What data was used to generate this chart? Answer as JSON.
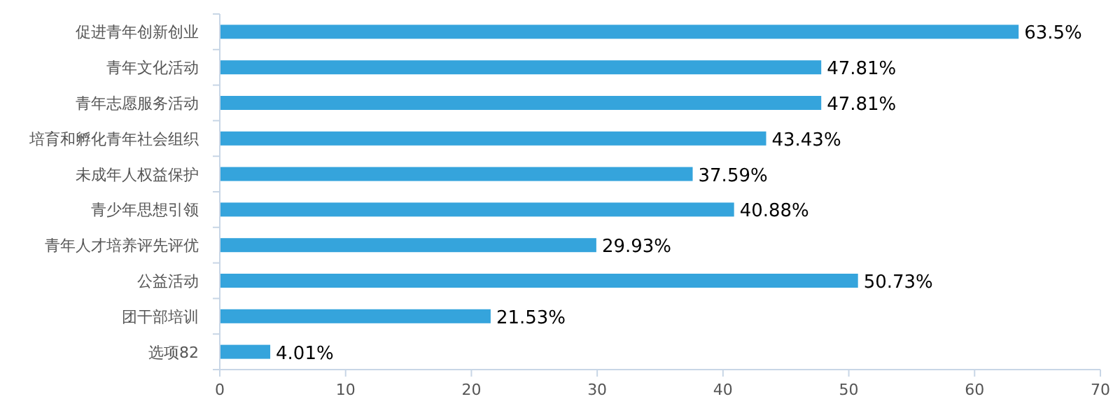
{
  "chart_data": {
    "type": "bar",
    "orientation": "horizontal",
    "categories": [
      "促进青年创新创业",
      "青年文化活动",
      "青年志愿服务活动",
      "培育和孵化青年社会组织",
      "未成年人权益保护",
      "青少年思想引领",
      "青年人才培养评先评优",
      "公益活动",
      "团干部培训",
      "选项82"
    ],
    "values": [
      63.5,
      47.81,
      47.81,
      43.43,
      37.59,
      40.88,
      29.93,
      50.73,
      21.53,
      4.01
    ],
    "value_labels": [
      "63.5%",
      "47.81%",
      "47.81%",
      "43.43%",
      "37.59%",
      "40.88%",
      "29.93%",
      "50.73%",
      "21.53%",
      "4.01%"
    ],
    "color": "#35a4dc",
    "xlim": [
      0,
      70
    ],
    "xticks": [
      0,
      10,
      20,
      30,
      40,
      50,
      60,
      70
    ]
  }
}
